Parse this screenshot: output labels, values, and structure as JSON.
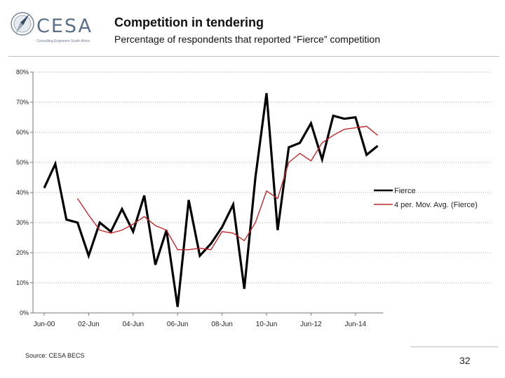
{
  "header": {
    "logo_text": "CESA",
    "logo_tagline": "Consulting Engineers South Africa",
    "title": "Competition in tendering",
    "subtitle": "Percentage of respondents that reported “Fierce” competition"
  },
  "footer": {
    "source": "Source: CESA BECS",
    "page_number": "32"
  },
  "colors": {
    "fierce": "#000000",
    "moving_avg": "#c0272d",
    "grid": "#a6a6a6",
    "logo": "#5a6f8a"
  },
  "chart_data": {
    "type": "line",
    "title": "Competition in tendering",
    "subtitle": "Percentage of respondents that reported “Fierce” competition",
    "xlabel": "",
    "ylabel": "",
    "ylim": [
      0,
      80
    ],
    "yticks": [
      0,
      10,
      20,
      30,
      40,
      50,
      60,
      70,
      80
    ],
    "ytick_labels": [
      "0%",
      "10%",
      "20%",
      "30%",
      "40%",
      "50%",
      "60%",
      "70%",
      "80%"
    ],
    "grid": true,
    "legend_position": "right",
    "xtick_labels": [
      {
        "index": 0,
        "label": "Jun-00"
      },
      {
        "index": 4,
        "label": "02-Jun"
      },
      {
        "index": 8,
        "label": "04-Jun"
      },
      {
        "index": 12,
        "label": "06-Jun"
      },
      {
        "index": 16,
        "label": "08-Jun"
      },
      {
        "index": 20,
        "label": "10-Jun"
      },
      {
        "index": 24,
        "label": "Jun-12"
      },
      {
        "index": 28,
        "label": "Jun-14"
      }
    ],
    "series": [
      {
        "name": "Fierce",
        "values": [
          41.5,
          49.5,
          31,
          30,
          19,
          30,
          27,
          34.5,
          27,
          39,
          16,
          27.5,
          2,
          37.5,
          19,
          23,
          28.5,
          36,
          8,
          45,
          73,
          27.5,
          55,
          56.5,
          63,
          51,
          65.5,
          64.5,
          65,
          52.5,
          55.5
        ]
      },
      {
        "name": "4 per. Mov. Avg. (Fierce)",
        "values": [
          null,
          null,
          null,
          38,
          32.5,
          27.5,
          26.5,
          27.5,
          29.5,
          32,
          29,
          27.5,
          21,
          21,
          21.5,
          21,
          27,
          26.5,
          24,
          30,
          40.5,
          38,
          50,
          53,
          50.5,
          56.5,
          59,
          61,
          61.5,
          62,
          59
        ]
      }
    ]
  }
}
